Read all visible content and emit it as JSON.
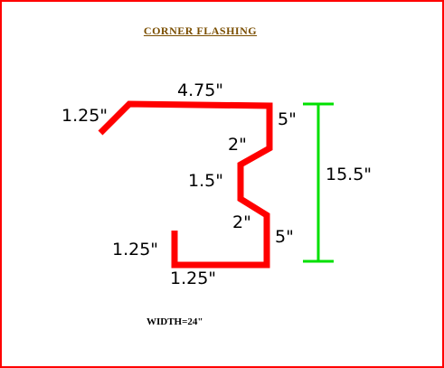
{
  "diagram": {
    "title": "CORNER FLASHING",
    "width_note": "WIDTH=24\"",
    "dimensions": {
      "top": "4.75\"",
      "top_left_lip": "1.25\"",
      "right_upper": "5\"",
      "upper_diagonal": "2\"",
      "middle": "1.5\"",
      "lower_diagonal": "2\"",
      "right_lower": "5\"",
      "bottom_left_lip": "1.25\"",
      "bottom": "1.25\"",
      "overall_height": "15.5\""
    },
    "colors": {
      "border": "#ff0000",
      "profile": "#ff0000",
      "dimension_line": "#00e000",
      "title": "#7a4e00",
      "text": "#000000"
    }
  }
}
